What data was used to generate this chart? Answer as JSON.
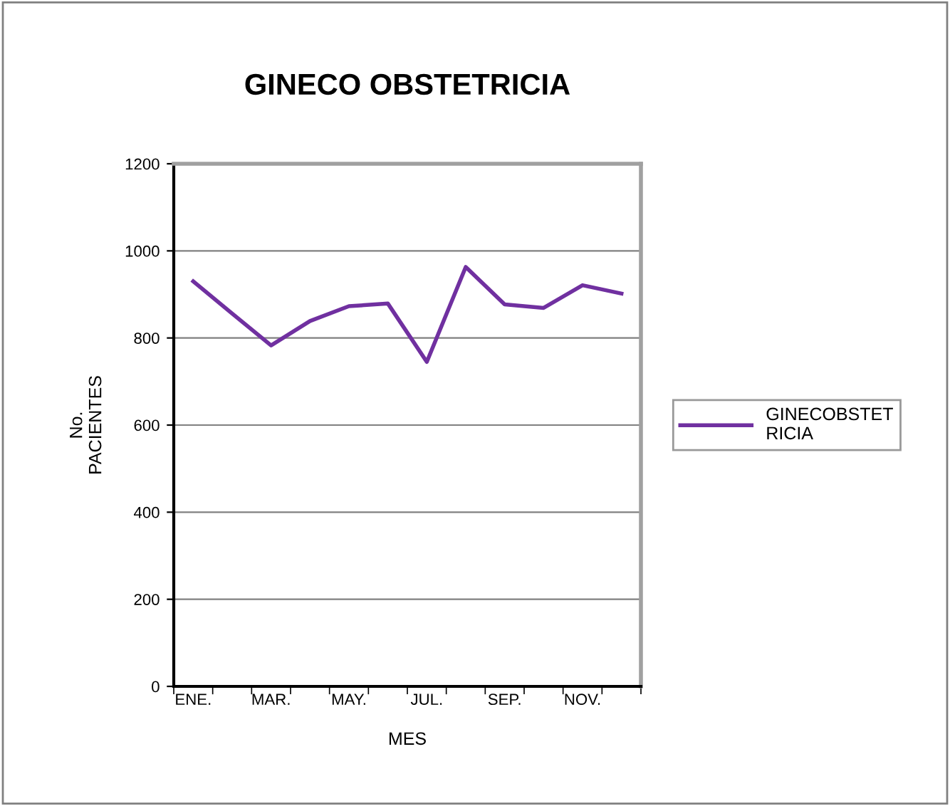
{
  "chart_data": {
    "type": "line",
    "title": "GINECO OBSTETRICIA",
    "xlabel": "MES",
    "ylabel": "No.\nPACIENTES",
    "categories": [
      "ENE.",
      null,
      "MAR.",
      null,
      "MAY.",
      null,
      "JUL.",
      null,
      "SEP.",
      null,
      "NOV.",
      null
    ],
    "series": [
      {
        "name": "GINECOBSTET\nRICIA",
        "color": "#7030a0",
        "values": [
          930,
          856,
          783,
          839,
          873,
          879,
          745,
          963,
          877,
          869,
          921,
          902
        ]
      }
    ],
    "ylim": [
      0,
      1200
    ],
    "yticks": [
      0,
      200,
      400,
      600,
      800,
      1000,
      1200
    ],
    "grid": "y",
    "legend": "right",
    "marker": "none",
    "line_style": "solid"
  }
}
